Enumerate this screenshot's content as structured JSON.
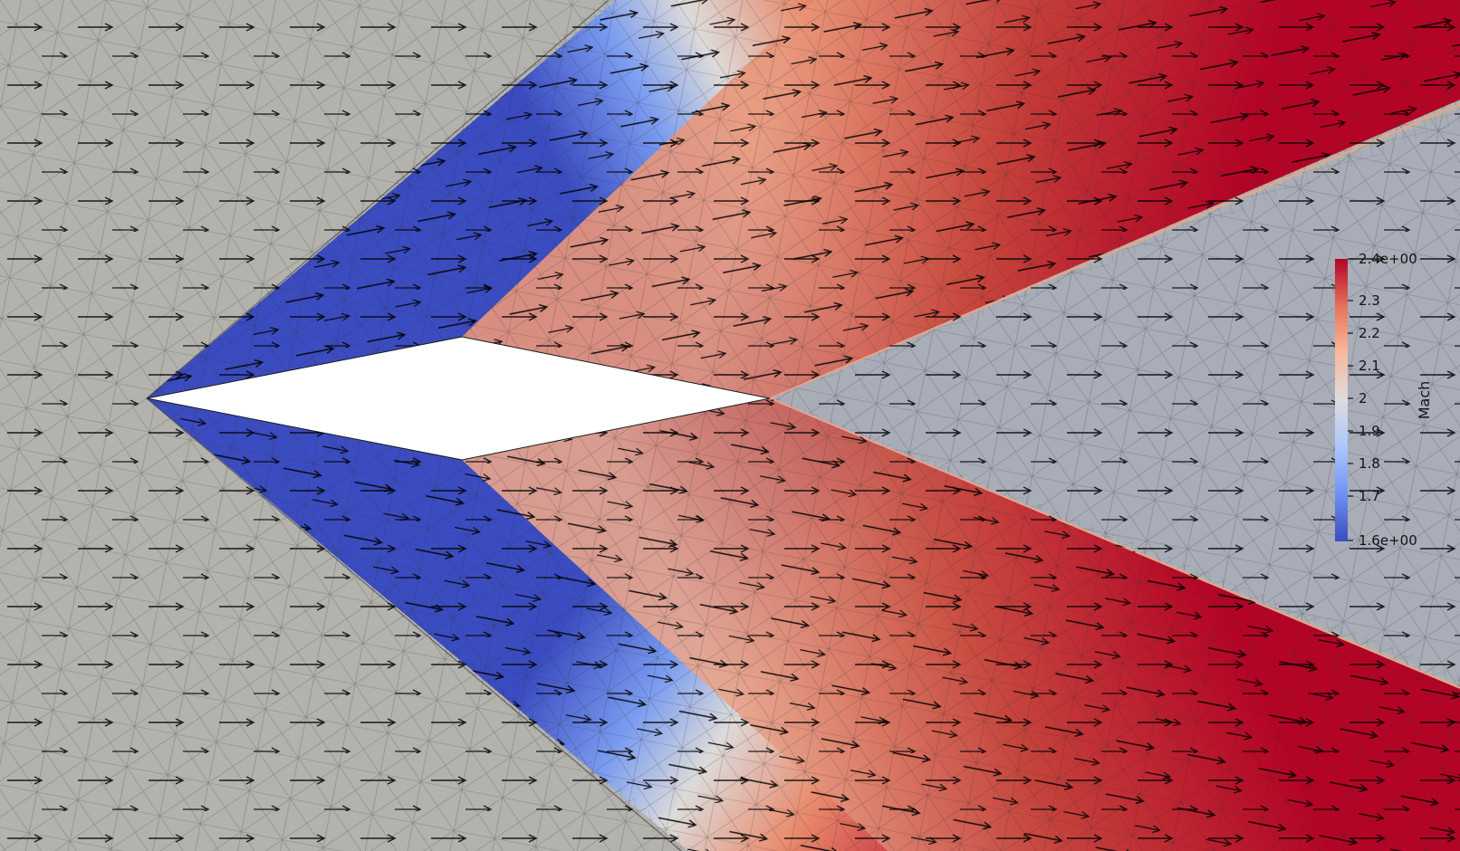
{
  "visualization": {
    "field": "Mach",
    "colormap": {
      "name": "cool-to-warm",
      "stops": [
        "#3b4cc0",
        "#6f92f3",
        "#aac7fd",
        "#dddcdc",
        "#f7b89c",
        "#e7745b",
        "#b40426"
      ],
      "background": "#b3b2ad"
    },
    "legend": {
      "title": "Mach",
      "max_label": "2.4e+00",
      "min_label": "1.6e+00",
      "tick_labels": [
        "2.3",
        "2.2",
        "2.1",
        "2",
        "1.9",
        "1.8",
        "1.7"
      ]
    },
    "glyph": "velocity-arrow",
    "mesh": "triangulated-wireframe",
    "body_color": "#ffffff"
  }
}
